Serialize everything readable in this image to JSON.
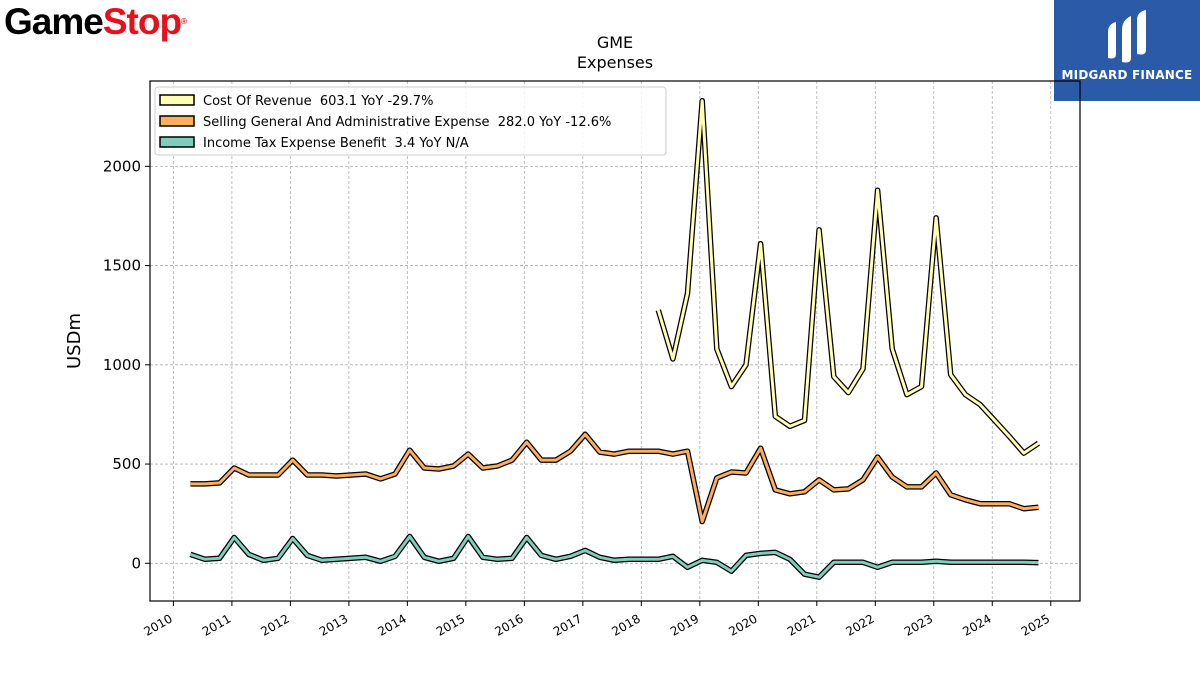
{
  "brand_left": {
    "part1": "Game",
    "part2": "Stop",
    "reg": "®"
  },
  "brand_right": {
    "name": "MIDGARD FINANCE"
  },
  "chart_data": {
    "type": "line",
    "title": "GME",
    "subtitle": "Expenses",
    "ylabel": "USDm",
    "xlabel": "",
    "xlim": [
      2009.6,
      2025.5
    ],
    "ylim": [
      -190,
      2430
    ],
    "x_ticks": [
      "2010",
      "2011",
      "2012",
      "2013",
      "2014",
      "2015",
      "2016",
      "2017",
      "2018",
      "2019",
      "2020",
      "2021",
      "2022",
      "2023",
      "2024",
      "2025"
    ],
    "y_ticks": [
      "0",
      "500",
      "1000",
      "1500",
      "2000"
    ],
    "grid": true,
    "legend_position": "top-left",
    "series": [
      {
        "name": "Cost Of Revenue  603.1 YoY -29.7%",
        "color": "#ffffb2",
        "points": [
          [
            2018.29,
            1275
          ],
          [
            2018.54,
            1030
          ],
          [
            2018.79,
            1360
          ],
          [
            2019.04,
            2330
          ],
          [
            2019.29,
            1080
          ],
          [
            2019.54,
            890
          ],
          [
            2019.79,
            1000
          ],
          [
            2020.04,
            1610
          ],
          [
            2020.29,
            740
          ],
          [
            2020.54,
            690
          ],
          [
            2020.79,
            720
          ],
          [
            2021.04,
            1680
          ],
          [
            2021.29,
            940
          ],
          [
            2021.54,
            860
          ],
          [
            2021.79,
            980
          ],
          [
            2022.04,
            1880
          ],
          [
            2022.29,
            1080
          ],
          [
            2022.54,
            850
          ],
          [
            2022.79,
            890
          ],
          [
            2023.04,
            1740
          ],
          [
            2023.29,
            950
          ],
          [
            2023.54,
            850
          ],
          [
            2023.79,
            800
          ],
          [
            2024.04,
            720
          ],
          [
            2024.29,
            640
          ],
          [
            2024.54,
            555
          ],
          [
            2024.79,
            605
          ]
        ]
      },
      {
        "name": "Selling General And Administrative Expense  282.0 YoY -12.6%",
        "color": "#fdae61",
        "points": [
          [
            2010.29,
            400
          ],
          [
            2010.54,
            400
          ],
          [
            2010.79,
            405
          ],
          [
            2011.04,
            480
          ],
          [
            2011.29,
            445
          ],
          [
            2011.54,
            445
          ],
          [
            2011.79,
            445
          ],
          [
            2012.04,
            520
          ],
          [
            2012.29,
            445
          ],
          [
            2012.54,
            445
          ],
          [
            2012.79,
            440
          ],
          [
            2013.04,
            445
          ],
          [
            2013.29,
            450
          ],
          [
            2013.54,
            425
          ],
          [
            2013.79,
            450
          ],
          [
            2014.04,
            570
          ],
          [
            2014.29,
            480
          ],
          [
            2014.54,
            475
          ],
          [
            2014.79,
            490
          ],
          [
            2015.04,
            550
          ],
          [
            2015.29,
            480
          ],
          [
            2015.54,
            490
          ],
          [
            2015.79,
            520
          ],
          [
            2016.04,
            610
          ],
          [
            2016.29,
            520
          ],
          [
            2016.54,
            520
          ],
          [
            2016.79,
            565
          ],
          [
            2017.04,
            650
          ],
          [
            2017.29,
            560
          ],
          [
            2017.54,
            550
          ],
          [
            2017.79,
            565
          ],
          [
            2018.04,
            565
          ],
          [
            2018.29,
            565
          ],
          [
            2018.54,
            550
          ],
          [
            2018.79,
            565
          ],
          [
            2019.04,
            210
          ],
          [
            2019.29,
            430
          ],
          [
            2019.54,
            460
          ],
          [
            2019.79,
            455
          ],
          [
            2020.04,
            580
          ],
          [
            2020.29,
            370
          ],
          [
            2020.54,
            350
          ],
          [
            2020.79,
            360
          ],
          [
            2021.04,
            420
          ],
          [
            2021.29,
            370
          ],
          [
            2021.54,
            375
          ],
          [
            2021.79,
            420
          ],
          [
            2022.04,
            535
          ],
          [
            2022.29,
            435
          ],
          [
            2022.54,
            385
          ],
          [
            2022.79,
            385
          ],
          [
            2023.04,
            455
          ],
          [
            2023.29,
            345
          ],
          [
            2023.54,
            320
          ],
          [
            2023.79,
            300
          ],
          [
            2024.04,
            300
          ],
          [
            2024.29,
            300
          ],
          [
            2024.54,
            275
          ],
          [
            2024.79,
            282
          ]
        ]
      },
      {
        "name": "Income Tax Expense Benefit  3.4 YoY N/A",
        "color": "#7fcdbb",
        "points": [
          [
            2010.29,
            45
          ],
          [
            2010.54,
            20
          ],
          [
            2010.79,
            25
          ],
          [
            2011.04,
            130
          ],
          [
            2011.29,
            45
          ],
          [
            2011.54,
            15
          ],
          [
            2011.79,
            25
          ],
          [
            2012.04,
            125
          ],
          [
            2012.29,
            40
          ],
          [
            2012.54,
            15
          ],
          [
            2012.79,
            20
          ],
          [
            2013.04,
            25
          ],
          [
            2013.29,
            30
          ],
          [
            2013.54,
            10
          ],
          [
            2013.79,
            35
          ],
          [
            2014.04,
            135
          ],
          [
            2014.29,
            30
          ],
          [
            2014.54,
            10
          ],
          [
            2014.79,
            25
          ],
          [
            2015.04,
            135
          ],
          [
            2015.29,
            30
          ],
          [
            2015.54,
            20
          ],
          [
            2015.79,
            25
          ],
          [
            2016.04,
            130
          ],
          [
            2016.29,
            40
          ],
          [
            2016.54,
            20
          ],
          [
            2016.79,
            35
          ],
          [
            2017.04,
            65
          ],
          [
            2017.29,
            30
          ],
          [
            2017.54,
            15
          ],
          [
            2017.79,
            20
          ],
          [
            2018.04,
            20
          ],
          [
            2018.29,
            20
          ],
          [
            2018.54,
            35
          ],
          [
            2018.79,
            -20
          ],
          [
            2019.04,
            15
          ],
          [
            2019.29,
            5
          ],
          [
            2019.54,
            -40
          ],
          [
            2019.79,
            40
          ],
          [
            2020.04,
            50
          ],
          [
            2020.29,
            55
          ],
          [
            2020.54,
            20
          ],
          [
            2020.79,
            -55
          ],
          [
            2021.04,
            -70
          ],
          [
            2021.29,
            5
          ],
          [
            2021.54,
            5
          ],
          [
            2021.79,
            5
          ],
          [
            2022.04,
            -20
          ],
          [
            2022.29,
            5
          ],
          [
            2022.54,
            5
          ],
          [
            2022.79,
            5
          ],
          [
            2023.04,
            10
          ],
          [
            2023.29,
            5
          ],
          [
            2023.54,
            5
          ],
          [
            2023.79,
            5
          ],
          [
            2024.04,
            5
          ],
          [
            2024.29,
            5
          ],
          [
            2024.54,
            5
          ],
          [
            2024.79,
            3.4
          ]
        ]
      }
    ]
  }
}
